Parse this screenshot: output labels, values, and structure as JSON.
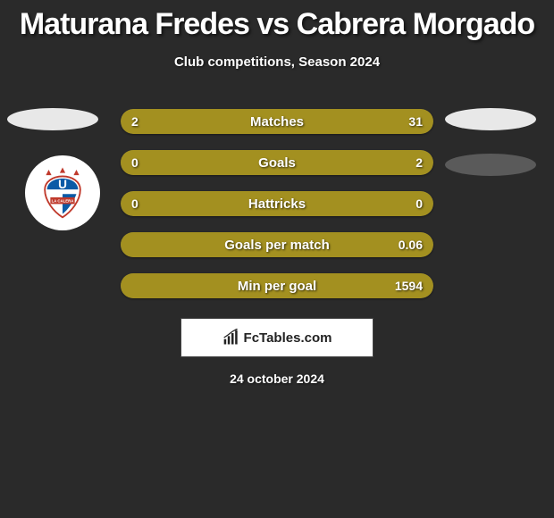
{
  "title": "Maturana Fredes vs Cabrera Morgado",
  "subtitle": "Club competitions, Season 2024",
  "date": "24 october 2024",
  "attribution": "FcTables.com",
  "colors": {
    "left": "#a39020",
    "right": "#a39020",
    "bar_bg": "#4a4a4a"
  },
  "badge": {
    "text": "LA CALERA"
  },
  "rows": [
    {
      "label": "Matches",
      "left": "2",
      "right": "31",
      "left_pct": 7,
      "right_pct": 93
    },
    {
      "label": "Goals",
      "left": "0",
      "right": "2",
      "left_pct": 3,
      "right_pct": 97
    },
    {
      "label": "Hattricks",
      "left": "0",
      "right": "0",
      "left_pct": 50,
      "right_pct": 50
    },
    {
      "label": "Goals per match",
      "left": "",
      "right": "0.06",
      "left_pct": 0,
      "right_pct": 100
    },
    {
      "label": "Min per goal",
      "left": "",
      "right": "1594",
      "left_pct": 0,
      "right_pct": 100
    }
  ]
}
